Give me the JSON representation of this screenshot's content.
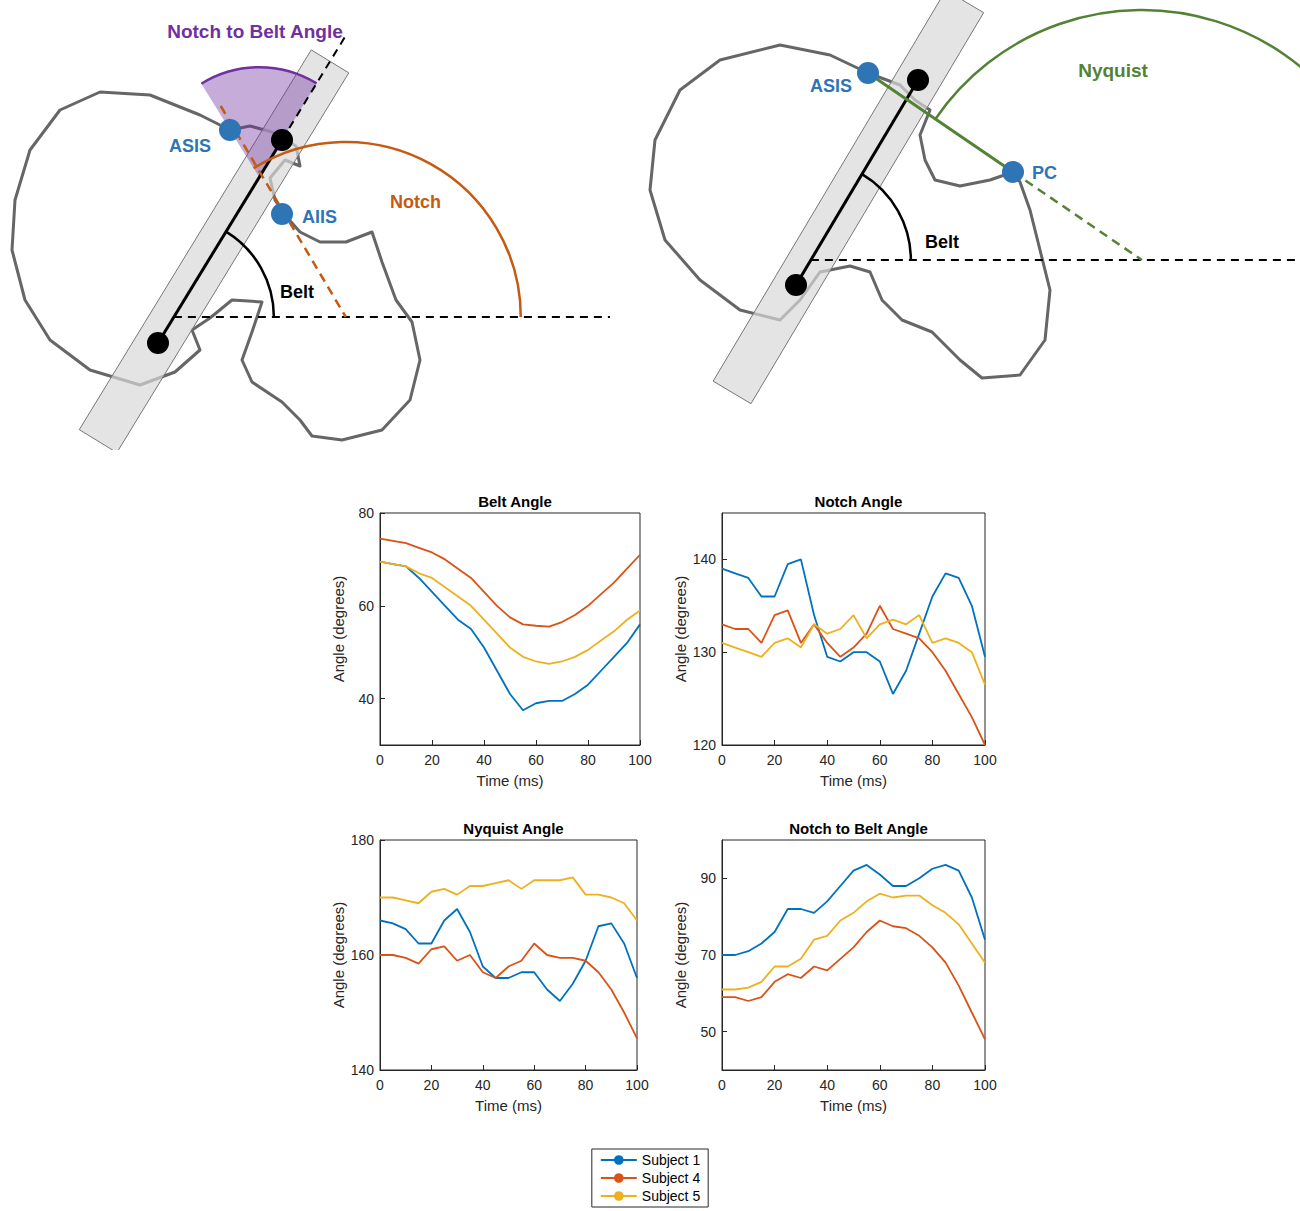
{
  "diagrams": {
    "left": {
      "points": [
        "ASIS",
        "AIIS"
      ],
      "angles": {
        "notch_to_belt": "Notch to Belt Angle",
        "notch": "Notch",
        "belt": "Belt"
      }
    },
    "right": {
      "points": [
        "ASIS",
        "PC"
      ],
      "angles": {
        "nyquist": "Nyquist",
        "belt": "Belt"
      }
    }
  },
  "chart_data": [
    {
      "type": "line",
      "title": "Belt Angle",
      "x_label": "Time (ms)",
      "y_label": "Angle (degrees)",
      "x": [
        0,
        5,
        10,
        15,
        20,
        25,
        30,
        35,
        40,
        45,
        50,
        55,
        60,
        65,
        70,
        75,
        80,
        85,
        90,
        95,
        100
      ],
      "xlim": [
        0,
        100
      ],
      "xticks": [
        0,
        20,
        40,
        60,
        80,
        100
      ],
      "ylim": [
        30,
        80
      ],
      "yticks": [
        40,
        60,
        80
      ],
      "grid": false,
      "legend": "bottom",
      "series": [
        {
          "name": "Subject 1",
          "color": "#0072BD",
          "values": [
            69.5,
            69,
            68.5,
            66,
            63,
            60,
            57,
            55,
            51,
            46,
            41,
            37.5,
            39,
            39.5,
            39.5,
            41,
            43,
            46,
            49,
            52,
            56
          ]
        },
        {
          "name": "Subject 4",
          "color": "#D95319",
          "values": [
            74.5,
            74,
            73.5,
            72.5,
            71.5,
            70,
            68,
            66,
            63,
            60,
            57.5,
            56,
            55.7,
            55.5,
            56.5,
            58,
            60,
            62.5,
            65,
            68,
            71
          ]
        },
        {
          "name": "Subject 5",
          "color": "#EDB120",
          "values": [
            69.5,
            69,
            68.5,
            67,
            66,
            64,
            62,
            60,
            57,
            54,
            51,
            49,
            48,
            47.5,
            48,
            49,
            50.5,
            52.5,
            54.5,
            57,
            59
          ]
        }
      ]
    },
    {
      "type": "line",
      "title": "Notch Angle",
      "x_label": "Time (ms)",
      "y_label": "Angle (degrees)",
      "x": [
        0,
        5,
        10,
        15,
        20,
        25,
        30,
        35,
        40,
        45,
        50,
        55,
        60,
        65,
        70,
        75,
        80,
        85,
        90,
        95,
        100
      ],
      "xlim": [
        0,
        100
      ],
      "xticks": [
        0,
        20,
        40,
        60,
        80,
        100
      ],
      "ylim": [
        120,
        145
      ],
      "yticks": [
        120,
        130,
        140
      ],
      "grid": false,
      "series": [
        {
          "name": "Subject 1",
          "color": "#0072BD",
          "values": [
            139,
            138.5,
            138,
            136,
            136,
            139.5,
            140,
            134,
            129.5,
            129,
            130,
            130,
            129,
            125.5,
            128,
            132,
            136,
            138.5,
            138,
            135,
            129.5
          ]
        },
        {
          "name": "Subject 4",
          "color": "#D95319",
          "values": [
            133,
            132.5,
            132.5,
            131,
            134,
            134.5,
            131,
            133,
            131,
            129.5,
            130.5,
            132,
            135,
            132.5,
            132,
            131.5,
            130,
            128,
            125.5,
            123,
            120
          ]
        },
        {
          "name": "Subject 5",
          "color": "#EDB120",
          "values": [
            131,
            130.5,
            130,
            129.5,
            131,
            131.5,
            130.5,
            133,
            132,
            132.5,
            134,
            131.5,
            133,
            133.5,
            133,
            134,
            131,
            131.5,
            131,
            130,
            126.5
          ]
        }
      ]
    },
    {
      "type": "line",
      "title": "Nyquist Angle",
      "x_label": "Time (ms)",
      "y_label": "Angle (degrees)",
      "x": [
        0,
        5,
        10,
        15,
        20,
        25,
        30,
        35,
        40,
        45,
        50,
        55,
        60,
        65,
        70,
        75,
        80,
        85,
        90,
        95,
        100
      ],
      "xlim": [
        0,
        100
      ],
      "xticks": [
        0,
        20,
        40,
        60,
        80,
        100
      ],
      "ylim": [
        140,
        180
      ],
      "yticks": [
        140,
        160,
        180
      ],
      "grid": false,
      "series": [
        {
          "name": "Subject 1",
          "color": "#0072BD",
          "values": [
            166,
            165.5,
            164.5,
            162,
            162,
            166,
            168,
            164,
            158,
            156,
            156,
            157,
            157,
            154,
            152,
            155,
            159,
            165,
            165.5,
            162,
            156
          ]
        },
        {
          "name": "Subject 4",
          "color": "#D95319",
          "values": [
            160,
            160,
            159.5,
            158.5,
            161,
            161.5,
            159,
            160,
            157,
            156,
            158,
            159,
            162,
            160,
            159.5,
            159.5,
            159,
            157,
            154,
            150,
            145.5
          ]
        },
        {
          "name": "Subject 5",
          "color": "#EDB120",
          "values": [
            170,
            170,
            169.5,
            169,
            171,
            171.5,
            170.5,
            172,
            172,
            172.5,
            173,
            171.5,
            173,
            173,
            173,
            173.5,
            170.5,
            170.5,
            170,
            169,
            166
          ]
        }
      ]
    },
    {
      "type": "line",
      "title": "Notch to Belt Angle",
      "x_label": "Time (ms)",
      "y_label": "Angle (degrees)",
      "x": [
        0,
        5,
        10,
        15,
        20,
        25,
        30,
        35,
        40,
        45,
        50,
        55,
        60,
        65,
        70,
        75,
        80,
        85,
        90,
        95,
        100
      ],
      "xlim": [
        0,
        100
      ],
      "xticks": [
        0,
        20,
        40,
        60,
        80,
        100
      ],
      "ylim": [
        40,
        100
      ],
      "yticks": [
        50,
        70,
        90
      ],
      "grid": false,
      "series": [
        {
          "name": "Subject 1",
          "color": "#0072BD",
          "values": [
            70,
            70,
            71,
            73,
            76,
            82,
            82,
            81,
            84,
            88,
            92,
            93.5,
            91,
            88,
            88,
            90,
            92.5,
            93.5,
            92,
            85,
            74
          ]
        },
        {
          "name": "Subject 4",
          "color": "#D95319",
          "values": [
            59,
            59,
            58,
            59,
            63,
            65,
            64,
            67,
            66,
            69,
            72,
            76,
            79,
            77.5,
            77,
            75,
            72,
            68,
            62,
            55,
            48
          ]
        },
        {
          "name": "Subject 5",
          "color": "#EDB120",
          "values": [
            61,
            61,
            61.5,
            63,
            67,
            67,
            69,
            74,
            75,
            79,
            81,
            84,
            86,
            85,
            85.5,
            85.5,
            83,
            81,
            78,
            73,
            68
          ]
        }
      ]
    }
  ]
}
